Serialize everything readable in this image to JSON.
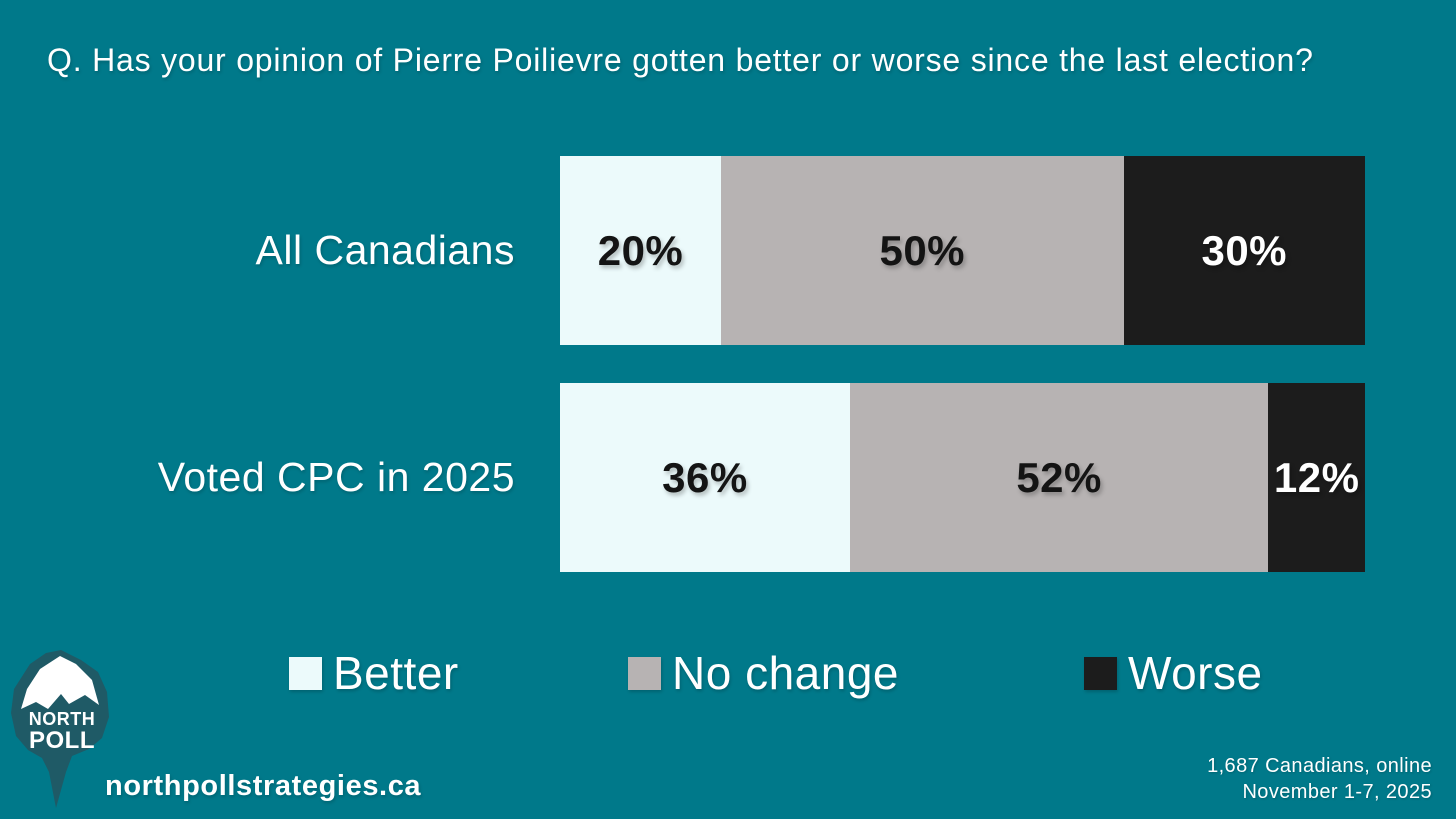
{
  "title": "Q. Has your opinion of Pierre Poilievre gotten better or worse since the last election?",
  "chart_data": {
    "type": "bar",
    "variant": "horizontal-stacked",
    "categories": [
      "All Canadians",
      "Voted CPC in 2025"
    ],
    "series": [
      {
        "name": "Better",
        "values": [
          20,
          36
        ],
        "color": "#ecfafb",
        "label_color": "#141414"
      },
      {
        "name": "No change",
        "values": [
          50,
          52
        ],
        "color": "#b7b3b3",
        "label_color": "#141414"
      },
      {
        "name": "Worse",
        "values": [
          30,
          12
        ],
        "color": "#1c1c1c",
        "label_color": "#ffffff"
      }
    ],
    "value_suffix": "%",
    "xlim": [
      0,
      100
    ],
    "grid": false,
    "legend_position": "bottom"
  },
  "legend": {
    "items": [
      {
        "label": "Better",
        "color": "#ecfafb"
      },
      {
        "label": "No change",
        "color": "#b7b3b3"
      },
      {
        "label": "Worse",
        "color": "#1c1c1c"
      }
    ]
  },
  "logo": {
    "line1": "NORTH",
    "line2": "POLL"
  },
  "footer": {
    "website": "northpollstrategies.ca",
    "sample_note": "1,687 Canadians, online",
    "date_range": "November 1-7, 2025"
  },
  "colors": {
    "background": "#00798a",
    "logo_iceberg": "#1f5a66",
    "text": "#ffffff"
  }
}
